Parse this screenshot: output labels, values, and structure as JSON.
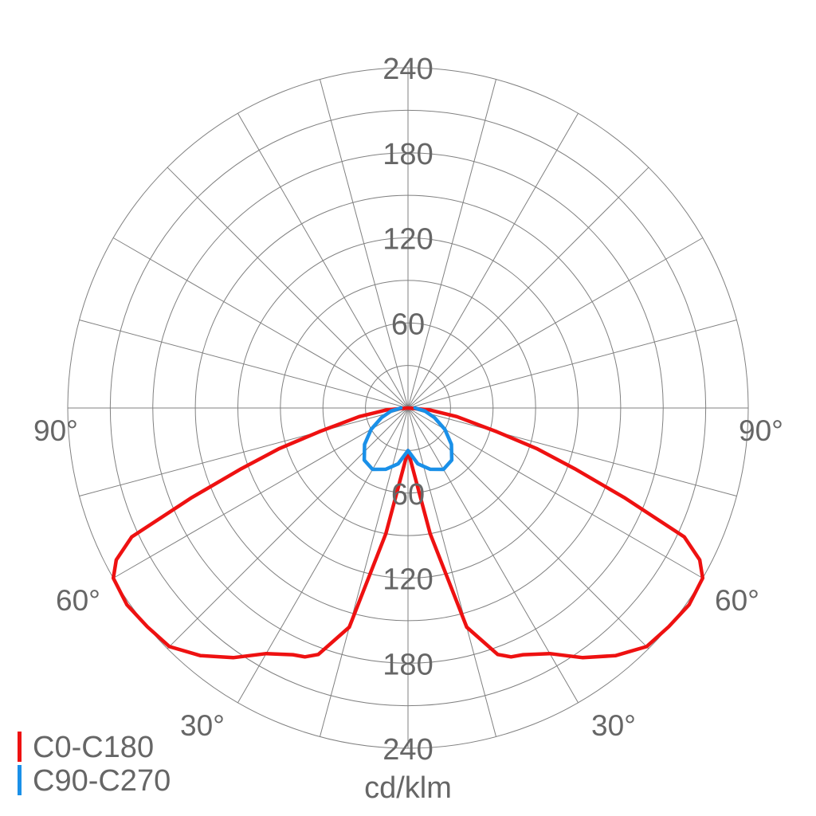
{
  "chart_data": {
    "type": "polar",
    "unit": "cd/klm",
    "radial_ticks": [
      60,
      120,
      180,
      240
    ],
    "radial_max": 240,
    "angle_labels": [
      "90°",
      "60°",
      "30°"
    ],
    "grid": true,
    "legend_position": "bottom-left",
    "colors": {
      "c0_c180": "#ee1111",
      "c90_c270": "#1a90e8",
      "grid": "#808080",
      "text": "#666666"
    },
    "series": [
      {
        "name": "C0-C180",
        "gamma_deg": [
          0,
          5,
          10,
          15,
          20,
          22.5,
          25,
          30,
          35,
          40,
          45,
          50,
          55,
          60,
          62.5,
          65,
          67.5,
          70,
          72.5,
          75,
          80,
          85,
          90
        ],
        "cd_klm": [
          30,
          45,
          90,
          160,
          185,
          190,
          192,
          200,
          215,
          228,
          238,
          240,
          242,
          240,
          232,
          215,
          165,
          125,
          95,
          65,
          35,
          15,
          0
        ]
      },
      {
        "name": "C90-C270",
        "gamma_deg": [
          0,
          10,
          20,
          30,
          40,
          50,
          60,
          70,
          80,
          90
        ],
        "cd_klm": [
          30,
          40,
          46,
          50,
          48,
          40,
          30,
          20,
          12,
          5
        ]
      }
    ]
  }
}
